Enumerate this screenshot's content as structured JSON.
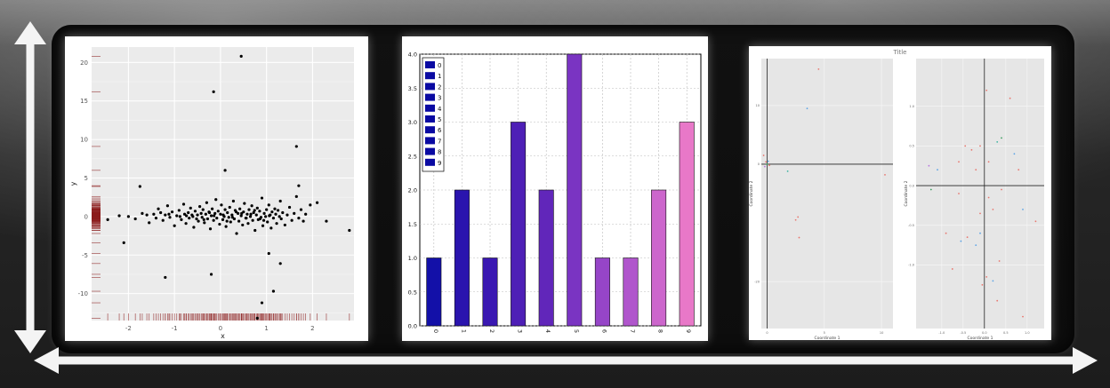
{
  "chart_data": [
    {
      "type": "scatter",
      "title": "",
      "xlabel": "x",
      "ylabel": "y",
      "xlim": [
        -2.8,
        2.9
      ],
      "ylim": [
        -13.5,
        22
      ],
      "xticks": [
        "-2",
        "-1",
        "0",
        "1",
        "2"
      ],
      "xtick_values": [
        -2,
        -1,
        0,
        1,
        2
      ],
      "yticks": [
        "-10",
        "-5",
        "0",
        "5",
        "10",
        "15",
        "20"
      ],
      "ytick_values": [
        -10,
        -5,
        0,
        5,
        10,
        15,
        20
      ],
      "grid": true,
      "rug": true,
      "outliers": [
        [
          0.45,
          20.8
        ],
        [
          -0.15,
          16.2
        ],
        [
          1.65,
          9.1
        ],
        [
          -1.75,
          3.9
        ],
        [
          0.1,
          6.0
        ],
        [
          -0.2,
          -7.5
        ],
        [
          -1.2,
          -7.9
        ],
        [
          1.3,
          -6.1
        ],
        [
          1.15,
          -9.7
        ],
        [
          0.9,
          -11.2
        ],
        [
          0.8,
          -13.2
        ],
        [
          -2.1,
          -3.4
        ],
        [
          2.8,
          -1.8
        ],
        [
          1.7,
          4.0
        ],
        [
          1.05,
          -4.8
        ]
      ],
      "points": [
        [
          -2.45,
          -0.4
        ],
        [
          -2.2,
          0.1
        ],
        [
          -2.0,
          0.0
        ],
        [
          -1.85,
          -0.3
        ],
        [
          -1.7,
          0.4
        ],
        [
          -1.6,
          0.2
        ],
        [
          -1.55,
          -0.8
        ],
        [
          -1.45,
          0.3
        ],
        [
          -1.4,
          -0.2
        ],
        [
          -1.35,
          1.0
        ],
        [
          -1.3,
          0.5
        ],
        [
          -1.25,
          -0.5
        ],
        [
          -1.2,
          0.2
        ],
        [
          -1.15,
          1.4
        ],
        [
          -1.1,
          -0.1
        ],
        [
          -1.05,
          0.6
        ],
        [
          -1.0,
          -1.2
        ],
        [
          -0.95,
          0.1
        ],
        [
          -0.9,
          0.8
        ],
        [
          -0.85,
          -0.4
        ],
        [
          -0.8,
          1.6
        ],
        [
          -0.78,
          0.3
        ],
        [
          -0.75,
          -0.9
        ],
        [
          -0.7,
          0.5
        ],
        [
          -0.68,
          -0.2
        ],
        [
          -0.65,
          1.1
        ],
        [
          -0.6,
          0.0
        ],
        [
          -0.58,
          -1.4
        ],
        [
          -0.55,
          0.7
        ],
        [
          -0.5,
          0.2
        ],
        [
          -0.48,
          -0.6
        ],
        [
          -0.45,
          1.3
        ],
        [
          -0.42,
          0.4
        ],
        [
          -0.4,
          -0.1
        ],
        [
          -0.38,
          0.9
        ],
        [
          -0.35,
          -0.8
        ],
        [
          -0.32,
          0.3
        ],
        [
          -0.3,
          1.8
        ],
        [
          -0.28,
          -0.3
        ],
        [
          -0.25,
          0.6
        ],
        [
          -0.22,
          -1.6
        ],
        [
          -0.2,
          0.1
        ],
        [
          -0.18,
          1.0
        ],
        [
          -0.15,
          -0.5
        ],
        [
          -0.12,
          0.4
        ],
        [
          -0.1,
          2.2
        ],
        [
          -0.08,
          -0.2
        ],
        [
          -0.05,
          0.7
        ],
        [
          -0.02,
          -1.0
        ],
        [
          0.0,
          0.3
        ],
        [
          0.02,
          1.5
        ],
        [
          0.05,
          -0.4
        ],
        [
          0.08,
          0.0
        ],
        [
          0.1,
          0.9
        ],
        [
          0.12,
          -1.3
        ],
        [
          0.15,
          0.5
        ],
        [
          0.18,
          -0.1
        ],
        [
          0.2,
          1.2
        ],
        [
          0.22,
          -0.7
        ],
        [
          0.25,
          0.2
        ],
        [
          0.28,
          2.0
        ],
        [
          0.3,
          -0.3
        ],
        [
          0.32,
          0.8
        ],
        [
          0.35,
          -2.2
        ],
        [
          0.38,
          0.4
        ],
        [
          0.4,
          -0.6
        ],
        [
          0.42,
          1.0
        ],
        [
          0.45,
          0.1
        ],
        [
          0.48,
          -1.1
        ],
        [
          0.5,
          0.6
        ],
        [
          0.52,
          1.7
        ],
        [
          0.55,
          -0.2
        ],
        [
          0.58,
          0.3
        ],
        [
          0.6,
          -0.9
        ],
        [
          0.62,
          0.9
        ],
        [
          0.65,
          0.0
        ],
        [
          0.68,
          1.4
        ],
        [
          0.7,
          -0.5
        ],
        [
          0.72,
          0.5
        ],
        [
          0.75,
          -1.8
        ],
        [
          0.78,
          0.2
        ],
        [
          0.8,
          1.1
        ],
        [
          0.82,
          -0.4
        ],
        [
          0.85,
          0.7
        ],
        [
          0.88,
          -0.1
        ],
        [
          0.9,
          2.4
        ],
        [
          0.92,
          -1.2
        ],
        [
          0.95,
          0.4
        ],
        [
          0.98,
          0.0
        ],
        [
          1.0,
          0.9
        ],
        [
          1.02,
          -0.7
        ],
        [
          1.05,
          1.5
        ],
        [
          1.08,
          0.2
        ],
        [
          1.1,
          -1.5
        ],
        [
          1.12,
          0.6
        ],
        [
          1.15,
          -0.2
        ],
        [
          1.18,
          1.0
        ],
        [
          1.2,
          0.3
        ],
        [
          1.22,
          -0.9
        ],
        [
          1.25,
          0.8
        ],
        [
          1.3,
          2.0
        ],
        [
          1.32,
          -0.3
        ],
        [
          1.35,
          0.5
        ],
        [
          1.4,
          -1.1
        ],
        [
          1.45,
          0.2
        ],
        [
          1.5,
          1.2
        ],
        [
          1.55,
          -0.5
        ],
        [
          1.6,
          0.4
        ],
        [
          1.65,
          2.6
        ],
        [
          1.7,
          -0.2
        ],
        [
          1.75,
          0.9
        ],
        [
          1.8,
          -0.6
        ],
        [
          1.85,
          0.3
        ],
        [
          1.95,
          1.5
        ],
        [
          2.1,
          1.8
        ],
        [
          2.3,
          -0.6
        ],
        [
          -0.88,
          0.0
        ],
        [
          -0.62,
          0.2
        ],
        [
          -0.36,
          -0.4
        ],
        [
          -0.14,
          0.1
        ],
        [
          0.06,
          0.2
        ],
        [
          0.26,
          -0.1
        ],
        [
          0.46,
          0.4
        ],
        [
          0.66,
          0.3
        ],
        [
          0.86,
          -0.3
        ],
        [
          1.06,
          0.1
        ],
        [
          -1.12,
          0.3
        ],
        [
          -0.52,
          -0.3
        ],
        [
          0.14,
          -0.6
        ],
        [
          0.74,
          0.8
        ],
        [
          1.28,
          0.0
        ],
        [
          -0.24,
          0.5
        ],
        [
          0.34,
          0.6
        ],
        [
          0.94,
          -0.5
        ],
        [
          -0.74,
          0.1
        ],
        [
          0.56,
          -0.2
        ]
      ]
    },
    {
      "type": "bar",
      "title": "",
      "xlabel": "",
      "ylabel": "",
      "categories": [
        "0",
        "1",
        "2",
        "3",
        "4",
        "5",
        "6",
        "7",
        "8",
        "9"
      ],
      "values": [
        1,
        2,
        1,
        3,
        2,
        4,
        1,
        1,
        2,
        3
      ],
      "colors": [
        "#1310a8",
        "#2a14ae",
        "#3a18b2",
        "#4e1fb6",
        "#6126ba",
        "#7a34c2",
        "#9645c8",
        "#b056cc",
        "#cc66cc",
        "#e878c8"
      ],
      "legend_color": "#0a0aa2",
      "legend_position": "top-left",
      "ylim": [
        0,
        4.0
      ],
      "yticks": [
        "0.0",
        "0.5",
        "1.0",
        "1.5",
        "2.0",
        "2.5",
        "3.0",
        "3.5",
        "4.0"
      ],
      "ytick_values": [
        0,
        0.5,
        1,
        1.5,
        2,
        2.5,
        3,
        3.5,
        4
      ],
      "grid": true
    },
    {
      "type": "scatter",
      "title": "Title",
      "subplots": [
        {
          "xlabel": "Coordinate 1",
          "ylabel": "Coordinate 2",
          "xlim": [
            -0.5,
            11
          ],
          "ylim": [
            -28,
            18
          ],
          "xticks": [
            "0",
            "5",
            "10"
          ],
          "xtick_values": [
            0,
            5,
            10
          ],
          "yticks": [
            "-20",
            "0",
            "10"
          ],
          "ytick_values": [
            -20,
            0,
            10
          ],
          "hline": 0,
          "vline": 0,
          "points": [
            {
              "x": 4.5,
              "y": 16.2,
              "color": "#e8776f"
            },
            {
              "x": 3.5,
              "y": 9.5,
              "color": "#5aa3e6"
            },
            {
              "x": -0.3,
              "y": 1.5,
              "color": "#e8776f"
            },
            {
              "x": -0.1,
              "y": 0.4,
              "color": "#e8776f"
            },
            {
              "x": 0.0,
              "y": 0.0,
              "color": "#3a9d5d"
            },
            {
              "x": 0.1,
              "y": 0.5,
              "color": "#5aa3e6"
            },
            {
              "x": -0.2,
              "y": -0.4,
              "color": "#b979e0"
            },
            {
              "x": 0.2,
              "y": -0.2,
              "color": "#e8776f"
            },
            {
              "x": 1.8,
              "y": -1.2,
              "color": "#3ab3a0"
            },
            {
              "x": 2.5,
              "y": -9.5,
              "color": "#e8776f"
            },
            {
              "x": 2.7,
              "y": -9.0,
              "color": "#e8776f"
            },
            {
              "x": 2.8,
              "y": -12.5,
              "color": "#e8776f"
            },
            {
              "x": 10.3,
              "y": -1.8,
              "color": "#e8776f"
            }
          ]
        },
        {
          "xlabel": "Coordinate 1",
          "ylabel": "Coordinate 2",
          "xlim": [
            -1.6,
            1.4
          ],
          "ylim": [
            -1.8,
            1.6
          ],
          "xticks": [
            "-1.0",
            "-0.5",
            "0.0",
            "0.5",
            "1.0"
          ],
          "xtick_values": [
            -1.0,
            -0.5,
            0.0,
            0.5,
            1.0
          ],
          "yticks": [
            "-1.0",
            "-0.5",
            "0.0",
            "0.5",
            "1.0"
          ],
          "ytick_values": [
            -1.0,
            -0.5,
            0.0,
            0.5,
            1.0
          ],
          "hline": 0,
          "vline": 0,
          "points": [
            {
              "x": 0.05,
              "y": 1.2,
              "color": "#e8776f"
            },
            {
              "x": 0.6,
              "y": 1.1,
              "color": "#e8776f"
            },
            {
              "x": -0.45,
              "y": 0.5,
              "color": "#e8776f"
            },
            {
              "x": -0.3,
              "y": 0.45,
              "color": "#e8776f"
            },
            {
              "x": 0.3,
              "y": 0.55,
              "color": "#3ab3a0"
            },
            {
              "x": 0.4,
              "y": 0.6,
              "color": "#3a9d5d"
            },
            {
              "x": -0.1,
              "y": 0.5,
              "color": "#e8776f"
            },
            {
              "x": 0.7,
              "y": 0.4,
              "color": "#5aa3e6"
            },
            {
              "x": 0.1,
              "y": 0.3,
              "color": "#e8776f"
            },
            {
              "x": -1.3,
              "y": 0.25,
              "color": "#b979e0"
            },
            {
              "x": -1.1,
              "y": 0.2,
              "color": "#5aa3e6"
            },
            {
              "x": -0.6,
              "y": 0.3,
              "color": "#e8776f"
            },
            {
              "x": -0.2,
              "y": 0.2,
              "color": "#e8776f"
            },
            {
              "x": 0.8,
              "y": 0.2,
              "color": "#e8776f"
            },
            {
              "x": -1.25,
              "y": -0.05,
              "color": "#3a9d5d"
            },
            {
              "x": 0.4,
              "y": -0.05,
              "color": "#e8776f"
            },
            {
              "x": -0.6,
              "y": -0.1,
              "color": "#e8776f"
            },
            {
              "x": 0.1,
              "y": -0.15,
              "color": "#e8776f"
            },
            {
              "x": -0.1,
              "y": -0.35,
              "color": "#e8776f"
            },
            {
              "x": 0.2,
              "y": -0.3,
              "color": "#e8776f"
            },
            {
              "x": 0.9,
              "y": -0.3,
              "color": "#5aa3e6"
            },
            {
              "x": 1.2,
              "y": -0.45,
              "color": "#e8776f"
            },
            {
              "x": -0.9,
              "y": -0.6,
              "color": "#e8776f"
            },
            {
              "x": -0.4,
              "y": -0.65,
              "color": "#e8776f"
            },
            {
              "x": -0.1,
              "y": -0.6,
              "color": "#5aa3e6"
            },
            {
              "x": -0.55,
              "y": -0.7,
              "color": "#5aa3e6"
            },
            {
              "x": -0.2,
              "y": -0.75,
              "color": "#5aa3e6"
            },
            {
              "x": 0.35,
              "y": -0.95,
              "color": "#e8776f"
            },
            {
              "x": -0.75,
              "y": -1.05,
              "color": "#e8776f"
            },
            {
              "x": 0.05,
              "y": -1.15,
              "color": "#e8776f"
            },
            {
              "x": 0.2,
              "y": -1.2,
              "color": "#5aa3e6"
            },
            {
              "x": 0.3,
              "y": -1.45,
              "color": "#e8776f"
            },
            {
              "x": 0.9,
              "y": -1.65,
              "color": "#e8776f"
            },
            {
              "x": -0.05,
              "y": -1.25,
              "color": "#e8776f"
            }
          ]
        }
      ]
    }
  ]
}
